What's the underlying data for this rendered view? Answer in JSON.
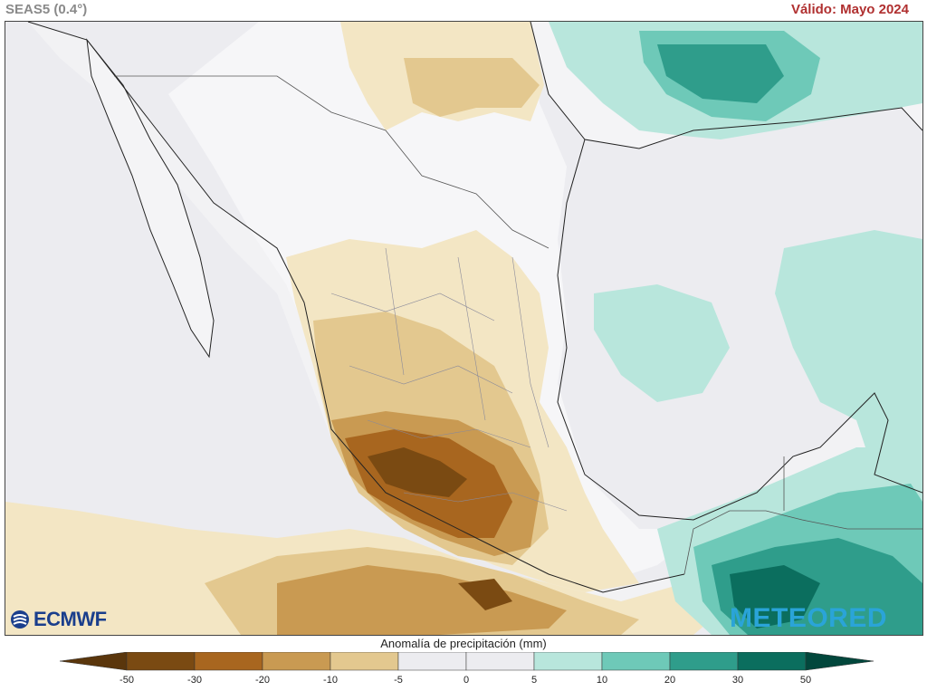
{
  "header": {
    "model": "SEAS5 (0.4°)",
    "valid": "Válido: Mayo 2024"
  },
  "map": {
    "region": "Mexico, Central America, Gulf of Mexico",
    "variable": "precipitation anomaly"
  },
  "logos": {
    "left": "ECMWF",
    "right": "METEORED"
  },
  "legend": {
    "title": "Anomalía de precipitación (mm)",
    "ticks": [
      "-50",
      "-30",
      "-20",
      "-10",
      "-5",
      "0",
      "5",
      "10",
      "20",
      "30",
      "50"
    ],
    "colors": [
      "#7a4a12",
      "#a8661f",
      "#c99a52",
      "#e3c88f",
      "#f3e6c4",
      "#ececf0",
      "#ececf0",
      "#b8e6dc",
      "#6ec9b8",
      "#2f9d8b",
      "#0b6e5e",
      "#02473c"
    ]
  },
  "colors": {
    "accent_valid": "#b03030",
    "header_gray": "#8a8a8a"
  }
}
